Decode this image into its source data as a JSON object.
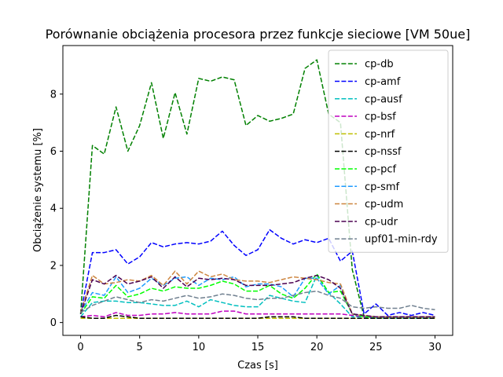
{
  "chart_data": {
    "type": "line",
    "title": "Porównanie obciążenia procesora przez funkcje sieciowe [VM 50ue]",
    "xlabel": "Czas [s]",
    "ylabel": "Obciążenie systemu [%]",
    "xlim": [
      -1.5,
      31.5
    ],
    "ylim": [
      -0.45,
      9.7
    ],
    "xticks": [
      0,
      5,
      10,
      15,
      20,
      25,
      30
    ],
    "yticks": [
      0,
      2,
      4,
      6,
      8
    ],
    "grid": false,
    "legend_position": "upper right",
    "x": [
      0,
      1,
      2,
      3,
      4,
      5,
      6,
      7,
      8,
      9,
      10,
      11,
      12,
      13,
      14,
      15,
      16,
      17,
      18,
      19,
      20,
      21,
      22,
      23,
      24,
      25,
      26,
      27,
      28,
      29,
      30
    ],
    "series": [
      {
        "name": "cp-db",
        "color": "#008000",
        "values": [
          0.3,
          6.2,
          5.9,
          7.55,
          6.0,
          6.9,
          8.4,
          6.45,
          8.05,
          6.6,
          8.55,
          8.45,
          8.6,
          8.5,
          6.9,
          7.25,
          7.05,
          7.15,
          7.3,
          8.9,
          9.2,
          7.3,
          7.0,
          1.85,
          0.2,
          0.2,
          0.2,
          0.2,
          0.2,
          0.2,
          0.2
        ]
      },
      {
        "name": "cp-amf",
        "color": "#0000ff",
        "values": [
          0.3,
          2.45,
          2.45,
          2.55,
          2.05,
          2.3,
          2.8,
          2.65,
          2.75,
          2.8,
          2.75,
          2.85,
          3.2,
          2.7,
          2.35,
          2.55,
          3.25,
          2.95,
          2.75,
          2.9,
          2.8,
          2.95,
          2.15,
          2.5,
          0.3,
          0.65,
          0.25,
          0.35,
          0.25,
          0.35,
          0.25
        ]
      },
      {
        "name": "cp-ausf",
        "color": "#00bfbf",
        "values": [
          0.2,
          0.7,
          0.75,
          0.75,
          0.7,
          0.7,
          0.65,
          0.6,
          0.6,
          0.75,
          0.55,
          0.8,
          0.7,
          0.6,
          0.55,
          0.55,
          0.95,
          0.85,
          0.75,
          0.7,
          1.65,
          1.05,
          0.65,
          0.2,
          0.2,
          0.15,
          0.15,
          0.15,
          0.15,
          0.15,
          0.15
        ]
      },
      {
        "name": "cp-bsf",
        "color": "#bf00bf",
        "values": [
          0.2,
          0.25,
          0.2,
          0.35,
          0.25,
          0.25,
          0.3,
          0.3,
          0.35,
          0.3,
          0.3,
          0.3,
          0.4,
          0.4,
          0.3,
          0.3,
          0.3,
          0.3,
          0.3,
          0.3,
          0.3,
          0.3,
          0.3,
          0.25,
          0.2,
          0.2,
          0.2,
          0.2,
          0.2,
          0.2,
          0.2
        ]
      },
      {
        "name": "cp-nrf",
        "color": "#bfbf00",
        "values": [
          0.15,
          0.15,
          0.15,
          0.15,
          0.15,
          0.15,
          0.15,
          0.15,
          0.15,
          0.15,
          0.15,
          0.15,
          0.15,
          0.15,
          0.15,
          0.15,
          0.15,
          0.15,
          0.15,
          0.15,
          0.15,
          0.15,
          0.15,
          0.15,
          0.15,
          0.15,
          0.15,
          0.15,
          0.15,
          0.15,
          0.15
        ]
      },
      {
        "name": "cp-nssf",
        "color": "#000000",
        "values": [
          0.2,
          0.15,
          0.15,
          0.25,
          0.2,
          0.15,
          0.15,
          0.15,
          0.15,
          0.15,
          0.15,
          0.15,
          0.15,
          0.15,
          0.15,
          0.15,
          0.2,
          0.2,
          0.2,
          0.15,
          0.15,
          0.15,
          0.15,
          0.15,
          0.15,
          0.15,
          0.15,
          0.15,
          0.15,
          0.15,
          0.15
        ]
      },
      {
        "name": "cp-pcf",
        "color": "#00ff00",
        "values": [
          0.3,
          0.9,
          0.85,
          1.3,
          0.9,
          1.0,
          1.2,
          1.1,
          1.25,
          1.2,
          1.2,
          1.3,
          1.45,
          1.35,
          1.1,
          1.1,
          1.3,
          1.0,
          0.85,
          1.2,
          1.7,
          1.05,
          1.1,
          0.3,
          0.2,
          0.2,
          0.2,
          0.2,
          0.2,
          0.2,
          0.2
        ]
      },
      {
        "name": "cp-smf",
        "color": "#1f9bff",
        "values": [
          0.35,
          1.05,
          0.95,
          1.6,
          1.05,
          1.2,
          1.55,
          1.3,
          1.55,
          1.6,
          1.3,
          1.55,
          1.5,
          1.6,
          1.25,
          1.35,
          1.35,
          1.25,
          0.9,
          1.55,
          1.55,
          1.0,
          1.3,
          0.3,
          0.25,
          0.2,
          0.2,
          0.2,
          0.2,
          0.2,
          0.2
        ]
      },
      {
        "name": "cp-udm",
        "color": "#cd853f",
        "values": [
          0.35,
          1.65,
          1.35,
          1.4,
          1.5,
          1.45,
          1.65,
          1.3,
          1.8,
          1.35,
          1.8,
          1.6,
          1.7,
          1.5,
          1.45,
          1.45,
          1.4,
          1.5,
          1.6,
          1.55,
          1.5,
          1.4,
          1.35,
          0.3,
          0.25,
          0.2,
          0.2,
          0.2,
          0.2,
          0.2,
          0.2
        ]
      },
      {
        "name": "cp-udr",
        "color": "#4b0050",
        "values": [
          0.3,
          1.5,
          1.35,
          1.65,
          1.35,
          1.45,
          1.6,
          1.2,
          1.6,
          1.25,
          1.55,
          1.5,
          1.55,
          1.5,
          1.3,
          1.3,
          1.3,
          1.35,
          1.4,
          1.55,
          1.65,
          1.5,
          1.2,
          0.3,
          0.25,
          0.2,
          0.2,
          0.2,
          0.2,
          0.2,
          0.2
        ]
      },
      {
        "name": "upf01-min-rdy",
        "color": "#708090",
        "values": [
          0.35,
          0.6,
          0.75,
          0.9,
          0.8,
          0.7,
          0.8,
          0.75,
          0.85,
          0.95,
          0.85,
          0.9,
          1.0,
          0.95,
          0.85,
          0.8,
          0.85,
          0.85,
          0.95,
          1.05,
          1.1,
          0.95,
          0.85,
          0.55,
          0.5,
          0.55,
          0.5,
          0.5,
          0.6,
          0.5,
          0.45
        ]
      }
    ]
  }
}
